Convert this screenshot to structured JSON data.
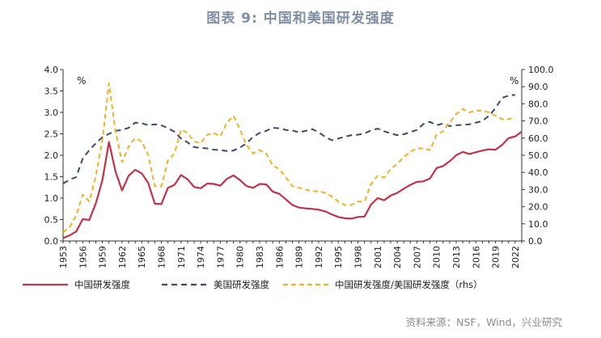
{
  "header": {
    "title": "图表 9:  中国和美国研发强度"
  },
  "footer": {
    "source": "资料来源：NSF，Wind，兴业研究"
  },
  "chart_data": {
    "type": "line",
    "title": "图表 9:  中国和美国研发强度",
    "left_axis": {
      "unit": "%",
      "ylim": [
        0,
        4
      ],
      "ticks": [
        "0.0",
        "0.5",
        "1.0",
        "1.5",
        "2.0",
        "2.5",
        "3.0",
        "3.5",
        "4.0"
      ]
    },
    "right_axis": {
      "unit": "%",
      "ylim": [
        0,
        100
      ],
      "ticks": [
        "0.0",
        "10.0",
        "20.0",
        "30.0",
        "40.0",
        "50.0",
        "60.0",
        "70.0",
        "80.0",
        "90.0",
        "100.0"
      ]
    },
    "x": {
      "start": 1953,
      "end": 2022,
      "tick_labels": [
        "1953",
        "1956",
        "1959",
        "1962",
        "1965",
        "1968",
        "1971",
        "1974",
        "1977",
        "1980",
        "1983",
        "1986",
        "1989",
        "1992",
        "1995",
        "1998",
        "2001",
        "2004",
        "2007",
        "2010",
        "2013",
        "2016",
        "2019",
        "2022"
      ]
    },
    "legend_position": "bottom",
    "colors": {
      "china": "#c0344a",
      "us": "#3a4a6b",
      "ratio": "#f0b12a"
    },
    "series": [
      {
        "name": "中国研发强度",
        "axis": "left",
        "style": "solid",
        "points": [
          [
            1953,
            0.07
          ],
          [
            1954,
            0.13
          ],
          [
            1955,
            0.22
          ],
          [
            1956,
            0.51
          ],
          [
            1957,
            0.49
          ],
          [
            1958,
            0.88
          ],
          [
            1959,
            1.42
          ],
          [
            1960,
            2.31
          ],
          [
            1961,
            1.62
          ],
          [
            1962,
            1.18
          ],
          [
            1963,
            1.52
          ],
          [
            1964,
            1.66
          ],
          [
            1965,
            1.58
          ],
          [
            1966,
            1.35
          ],
          [
            1967,
            0.87
          ],
          [
            1968,
            0.86
          ],
          [
            1969,
            1.24
          ],
          [
            1970,
            1.31
          ],
          [
            1971,
            1.54
          ],
          [
            1972,
            1.44
          ],
          [
            1973,
            1.26
          ],
          [
            1974,
            1.23
          ],
          [
            1975,
            1.34
          ],
          [
            1976,
            1.33
          ],
          [
            1977,
            1.29
          ],
          [
            1978,
            1.45
          ],
          [
            1979,
            1.53
          ],
          [
            1980,
            1.42
          ],
          [
            1981,
            1.28
          ],
          [
            1982,
            1.24
          ],
          [
            1983,
            1.33
          ],
          [
            1984,
            1.32
          ],
          [
            1985,
            1.15
          ],
          [
            1986,
            1.1
          ],
          [
            1987,
            0.97
          ],
          [
            1988,
            0.84
          ],
          [
            1989,
            0.78
          ],
          [
            1990,
            0.76
          ],
          [
            1991,
            0.75
          ],
          [
            1992,
            0.73
          ],
          [
            1993,
            0.69
          ],
          [
            1994,
            0.62
          ],
          [
            1995,
            0.56
          ],
          [
            1996,
            0.53
          ],
          [
            1997,
            0.52
          ],
          [
            1998,
            0.56
          ],
          [
            1999,
            0.57
          ],
          [
            2000,
            0.85
          ],
          [
            2001,
            1.0
          ],
          [
            2002,
            0.95
          ],
          [
            2003,
            1.06
          ],
          [
            2004,
            1.12
          ],
          [
            2005,
            1.22
          ],
          [
            2006,
            1.31
          ],
          [
            2007,
            1.38
          ],
          [
            2008,
            1.39
          ],
          [
            2009,
            1.46
          ],
          [
            2010,
            1.7
          ],
          [
            2011,
            1.75
          ],
          [
            2012,
            1.86
          ],
          [
            2013,
            2.0
          ],
          [
            2014,
            2.08
          ],
          [
            2015,
            2.03
          ],
          [
            2016,
            2.07
          ],
          [
            2017,
            2.11
          ],
          [
            2018,
            2.14
          ],
          [
            2019,
            2.13
          ],
          [
            2020,
            2.24
          ],
          [
            2021,
            2.4
          ],
          [
            2022,
            2.44
          ],
          [
            2023,
            2.55
          ]
        ]
      },
      {
        "name": "美国研发强度",
        "axis": "left",
        "style": "dashed",
        "points": [
          [
            1953,
            1.34
          ],
          [
            1954,
            1.43
          ],
          [
            1955,
            1.49
          ],
          [
            1956,
            1.92
          ],
          [
            1957,
            2.12
          ],
          [
            1958,
            2.28
          ],
          [
            1959,
            2.42
          ],
          [
            1960,
            2.5
          ],
          [
            1961,
            2.57
          ],
          [
            1962,
            2.59
          ],
          [
            1963,
            2.64
          ],
          [
            1964,
            2.76
          ],
          [
            1965,
            2.75
          ],
          [
            1966,
            2.7
          ],
          [
            1967,
            2.72
          ],
          [
            1968,
            2.7
          ],
          [
            1969,
            2.63
          ],
          [
            1970,
            2.55
          ],
          [
            1971,
            2.39
          ],
          [
            1972,
            2.3
          ],
          [
            1973,
            2.19
          ],
          [
            1974,
            2.17
          ],
          [
            1975,
            2.16
          ],
          [
            1976,
            2.13
          ],
          [
            1977,
            2.12
          ],
          [
            1978,
            2.1
          ],
          [
            1979,
            2.11
          ],
          [
            1980,
            2.18
          ],
          [
            1981,
            2.28
          ],
          [
            1982,
            2.43
          ],
          [
            1983,
            2.52
          ],
          [
            1984,
            2.57
          ],
          [
            1985,
            2.64
          ],
          [
            1986,
            2.63
          ],
          [
            1987,
            2.59
          ],
          [
            1988,
            2.58
          ],
          [
            1989,
            2.53
          ],
          [
            1990,
            2.57
          ],
          [
            1991,
            2.61
          ],
          [
            1992,
            2.54
          ],
          [
            1993,
            2.43
          ],
          [
            1994,
            2.35
          ],
          [
            1995,
            2.39
          ],
          [
            1996,
            2.43
          ],
          [
            1997,
            2.47
          ],
          [
            1998,
            2.48
          ],
          [
            1999,
            2.51
          ],
          [
            2000,
            2.58
          ],
          [
            2001,
            2.62
          ],
          [
            2002,
            2.56
          ],
          [
            2003,
            2.51
          ],
          [
            2004,
            2.47
          ],
          [
            2005,
            2.49
          ],
          [
            2006,
            2.54
          ],
          [
            2007,
            2.59
          ],
          [
            2008,
            2.73
          ],
          [
            2009,
            2.78
          ],
          [
            2010,
            2.7
          ],
          [
            2011,
            2.74
          ],
          [
            2012,
            2.68
          ],
          [
            2013,
            2.7
          ],
          [
            2014,
            2.71
          ],
          [
            2015,
            2.72
          ],
          [
            2016,
            2.76
          ],
          [
            2017,
            2.8
          ],
          [
            2018,
            2.92
          ],
          [
            2019,
            3.1
          ],
          [
            2020,
            3.34
          ],
          [
            2021,
            3.39
          ],
          [
            2022,
            3.41
          ]
        ]
      },
      {
        "name": "中国研发强度/美国研发强度（rhs）",
        "axis": "right",
        "style": "dashed",
        "points": [
          [
            1953,
            5
          ],
          [
            1954,
            8
          ],
          [
            1955,
            15
          ],
          [
            1956,
            27
          ],
          [
            1957,
            23
          ],
          [
            1958,
            38
          ],
          [
            1959,
            59
          ],
          [
            1960,
            92
          ],
          [
            1961,
            64
          ],
          [
            1962,
            46
          ],
          [
            1963,
            55
          ],
          [
            1964,
            60
          ],
          [
            1965,
            58
          ],
          [
            1966,
            50
          ],
          [
            1967,
            32
          ],
          [
            1968,
            32
          ],
          [
            1969,
            47
          ],
          [
            1970,
            51
          ],
          [
            1971,
            65
          ],
          [
            1972,
            63
          ],
          [
            1973,
            58
          ],
          [
            1974,
            57
          ],
          [
            1975,
            62
          ],
          [
            1976,
            63
          ],
          [
            1977,
            61
          ],
          [
            1978,
            69
          ],
          [
            1979,
            73
          ],
          [
            1980,
            65
          ],
          [
            1981,
            56
          ],
          [
            1982,
            51
          ],
          [
            1983,
            53
          ],
          [
            1984,
            51
          ],
          [
            1985,
            44
          ],
          [
            1986,
            42
          ],
          [
            1987,
            37
          ],
          [
            1988,
            32
          ],
          [
            1989,
            31
          ],
          [
            1990,
            30
          ],
          [
            1991,
            29
          ],
          [
            1992,
            29
          ],
          [
            1993,
            28
          ],
          [
            1994,
            26
          ],
          [
            1995,
            23
          ],
          [
            1996,
            21
          ],
          [
            1997,
            21
          ],
          [
            1998,
            23
          ],
          [
            1999,
            23
          ],
          [
            2000,
            33
          ],
          [
            2001,
            38
          ],
          [
            2002,
            37
          ],
          [
            2003,
            42
          ],
          [
            2004,
            45
          ],
          [
            2005,
            49
          ],
          [
            2006,
            52
          ],
          [
            2007,
            54
          ],
          [
            2008,
            54
          ],
          [
            2009,
            53
          ],
          [
            2010,
            62
          ],
          [
            2011,
            64
          ],
          [
            2012,
            69
          ],
          [
            2013,
            74
          ],
          [
            2014,
            77
          ],
          [
            2015,
            75
          ],
          [
            2016,
            76
          ],
          [
            2017,
            76
          ],
          [
            2018,
            75
          ],
          [
            2019,
            73
          ],
          [
            2020,
            71
          ],
          [
            2021,
            71
          ],
          [
            2022,
            72
          ]
        ]
      }
    ]
  }
}
